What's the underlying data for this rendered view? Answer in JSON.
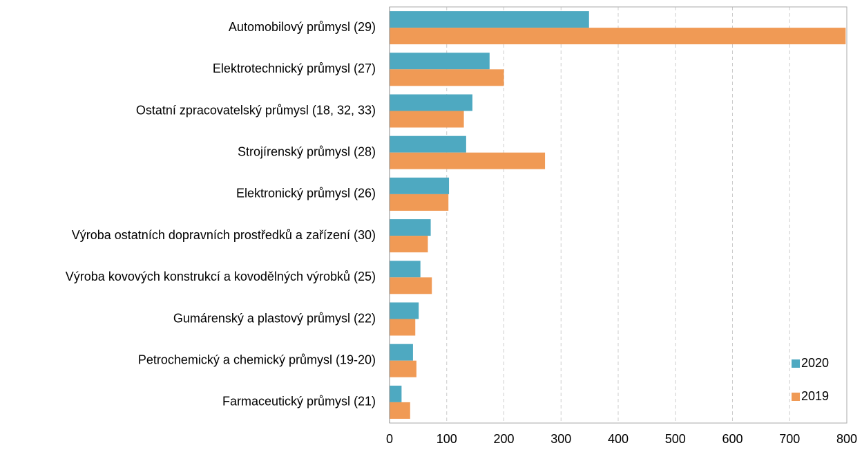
{
  "chart_data": {
    "type": "barh",
    "categories": [
      "Automobilový průmysl (29)",
      "Elektrotechnický průmysl (27)",
      "Ostatní zpracovatelský průmysl (18, 32, 33)",
      "Strojírenský průmysl (28)",
      "Elektronický průmysl (26)",
      "Výroba ostatních dopravních prostředků a zařízení (30)",
      "Výroba kovových konstrukcí a kovodělných výrobků (25)",
      "Gumárenský a plastový průmysl (22)",
      "Petrochemický a chemický průmysl (19-20)",
      "Farmaceutický průmysl (21)"
    ],
    "series": [
      {
        "name": "2020",
        "color": "#4ea9c1",
        "values": [
          349,
          175,
          145,
          134,
          104,
          72,
          54,
          51,
          41,
          21
        ]
      },
      {
        "name": "2019",
        "color": "#f09a55",
        "values": [
          798,
          200,
          130,
          272,
          103,
          67,
          74,
          45,
          47,
          36
        ]
      }
    ],
    "xlim": [
      0,
      800
    ],
    "xticks": [
      0,
      100,
      200,
      300,
      400,
      500,
      600,
      700,
      800
    ],
    "grid": true,
    "legend": "lower right"
  }
}
